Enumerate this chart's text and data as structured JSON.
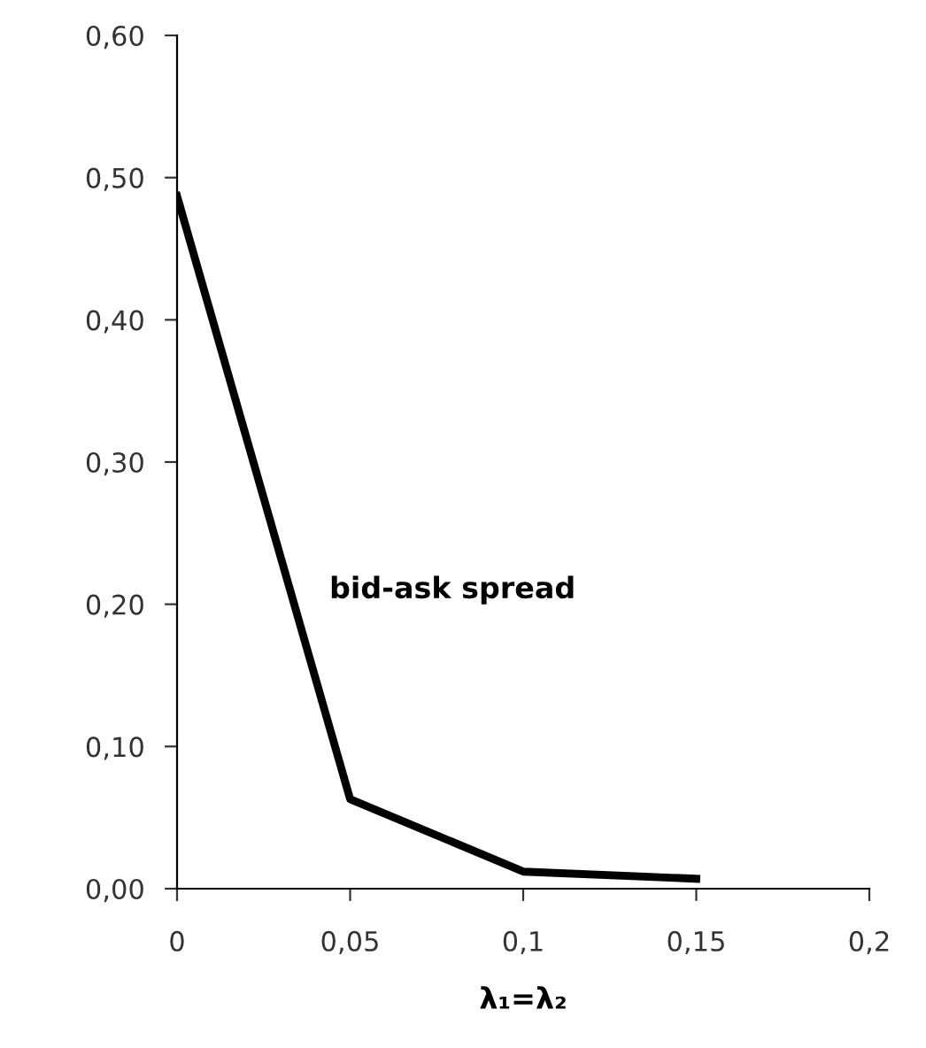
{
  "chart_data": {
    "type": "line",
    "xlabel": "λ₁=λ₂",
    "x": [
      0,
      0.05,
      0.1,
      0.15
    ],
    "series": [
      {
        "name": "bid-ask spread",
        "color": "#000000",
        "values": [
          0.487,
          0.063,
          0.012,
          0.007
        ]
      }
    ],
    "xlim": [
      0,
      0.2
    ],
    "xticks": [
      0,
      {
        "value": 0.05,
        "label": "0,05"
      },
      {
        "value": 0.1,
        "label": "0,1"
      },
      {
        "value": 0.15,
        "label": "0,15"
      },
      {
        "value": 0.2,
        "label": "0,2"
      }
    ],
    "ylim": [
      0,
      0.6
    ],
    "yticks": [
      {
        "value": 0,
        "label": "0,00"
      },
      {
        "value": 0.1,
        "label": "0,10"
      },
      {
        "value": 0.2,
        "label": "0,20"
      },
      {
        "value": 0.3,
        "label": "0,30"
      },
      {
        "value": 0.4,
        "label": "0,40"
      },
      {
        "value": 0.5,
        "label": "0,50"
      },
      {
        "value": 0.6,
        "label": "0,60"
      }
    ],
    "grid": false,
    "legend": false,
    "marker": "none",
    "line_style": "solid"
  }
}
